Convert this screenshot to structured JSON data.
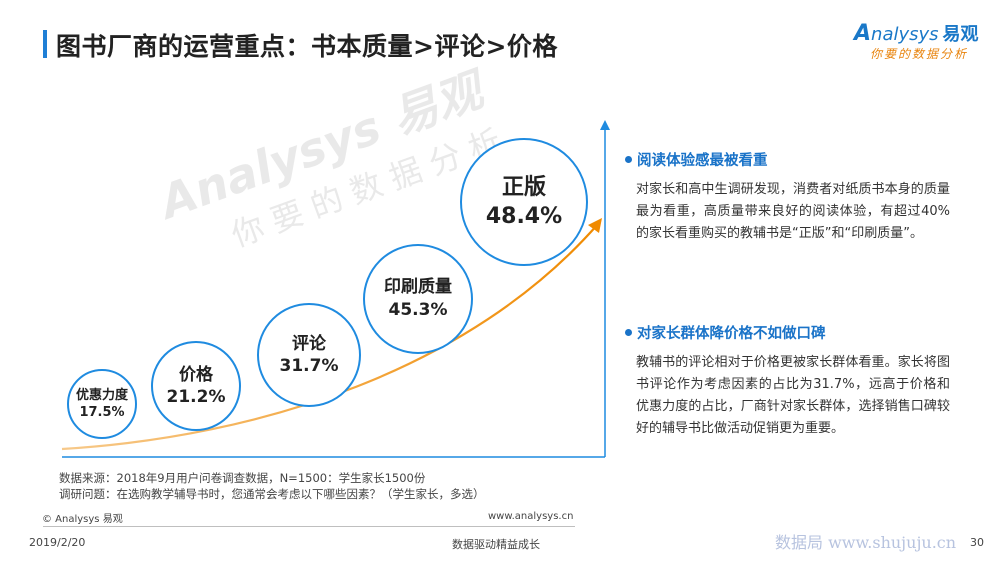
{
  "header": {
    "title": "图书厂商的运营重点：书本质量>评论>价格",
    "accent_color": "#1f7fd6"
  },
  "logo": {
    "brand_en": "nalysys",
    "brand_mark": "A",
    "brand_cn": "易观",
    "tagline": "你要的数据分析"
  },
  "watermark": {
    "line1": "Analysys 易观",
    "line2": "你要的数据分析"
  },
  "chart_data": {
    "type": "bubble",
    "categories": [
      "优惠力度",
      "价格",
      "评论",
      "印刷质量",
      "正版"
    ],
    "values": [
      17.5,
      21.2,
      31.7,
      45.3,
      48.4
    ],
    "value_labels": [
      "17.5%",
      "21.2%",
      "31.7%",
      "45.3%",
      "48.4%"
    ],
    "unit": "%",
    "trend": "increasing",
    "colors": {
      "bubble_border": "#1f8be0",
      "axis": "#1f8be0",
      "curve_start": "#f7c98a",
      "curve_end": "#f08a00"
    }
  },
  "sections": [
    {
      "heading": "阅读体验感最被看重",
      "body": "对家长和高中生调研发现，消费者对纸质书本身的质量最为看重，高质量带来良好的阅读体验，有超过40%的家长看重购买的教辅书是“正版”和“印刷质量”。"
    },
    {
      "heading": "对家长群体降价格不如做口碑",
      "body": "教辅书的评论相对于价格更被家长群体看重。家长将图书评论作为考虑因素的占比为31.7%，远高于价格和优惠力度的占比，厂商针对家长群体，选择销售口碑较好的辅导书比做活动促销更为重要。"
    }
  ],
  "source": {
    "line1": "数据来源：2018年9月用户问卷调查数据，N=1500：学生家长1500份",
    "line2": "调研问题：在选购教学辅导书时，您通常会考虑以下哪些因素？（学生家长，多选）"
  },
  "footer": {
    "copyright": "© Analysys 易观",
    "website": "www.analysys.cn",
    "date": "2019/2/20",
    "slogan": "数据驱动精益成长",
    "source_watermark": "数据局 www.shujuju.cn",
    "page_number": "30"
  }
}
